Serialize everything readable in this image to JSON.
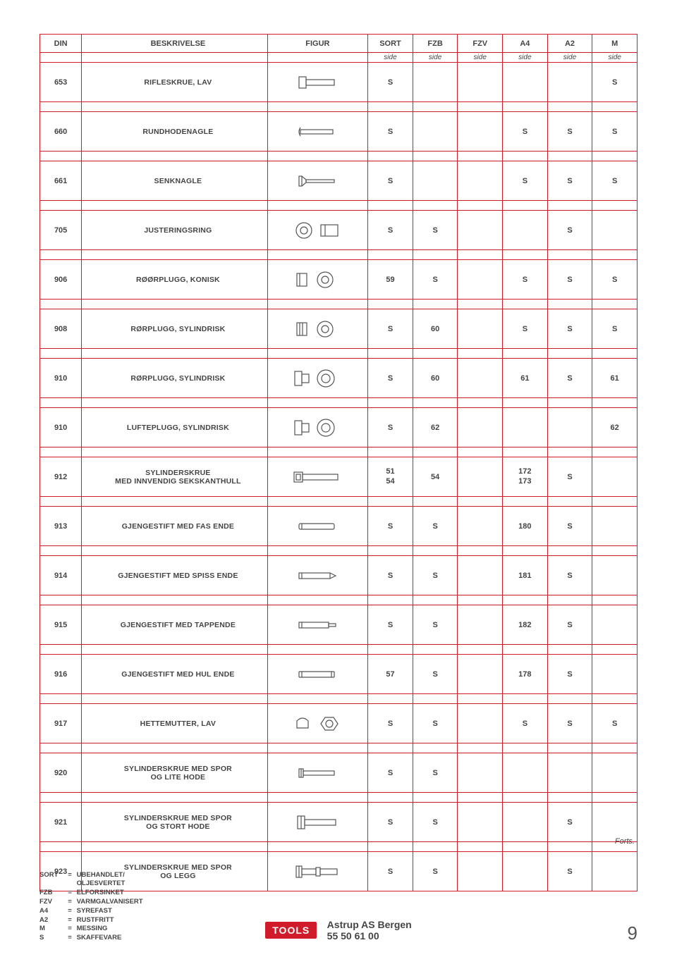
{
  "meta": {
    "theme": "#d01c2a",
    "text": "#444",
    "bg": "#ffffff"
  },
  "headers": {
    "din": "DIN",
    "desc": "BESKRIVELSE",
    "fig": "FIGUR",
    "sort": "SORT",
    "fzb": "FZB",
    "fzv": "FZV",
    "a4": "A4",
    "a2": "A2",
    "m": "M",
    "side": "side"
  },
  "rows": [
    {
      "din": "653",
      "desc": "RIFLESKRUE, LAV",
      "fig": "knurled-low",
      "sort": "S",
      "fzb": "",
      "fzv": "",
      "a4": "",
      "a2": "",
      "m": "S"
    },
    {
      "din": "660",
      "desc": "RUNDHODENAGLE",
      "fig": "rivet-round",
      "sort": "S",
      "fzb": "",
      "fzv": "",
      "a4": "S",
      "a2": "S",
      "m": "S"
    },
    {
      "din": "661",
      "desc": "SENKNAGLE",
      "fig": "rivet-csk",
      "sort": "S",
      "fzb": "",
      "fzv": "",
      "a4": "S",
      "a2": "S",
      "m": "S"
    },
    {
      "din": "705",
      "desc": "JUSTERINGSRING",
      "fig": "adj-ring",
      "sort": "S",
      "fzb": "S",
      "fzv": "",
      "a4": "",
      "a2": "S",
      "m": ""
    },
    {
      "din": "906",
      "desc": "RØØRPLUGG, KONISK",
      "fig": "plug-conic",
      "sort": "59",
      "fzb": "S",
      "fzv": "",
      "a4": "S",
      "a2": "S",
      "m": "S"
    },
    {
      "din": "908",
      "desc": "RØRPLUGG, SYLINDRISK",
      "fig": "plug-cyl",
      "sort": "S",
      "fzb": "60",
      "fzv": "",
      "a4": "S",
      "a2": "S",
      "m": "S"
    },
    {
      "din": "910",
      "desc": "RØRPLUGG, SYLINDRISK",
      "fig": "plug-cyl2",
      "sort": "S",
      "fzb": "60",
      "fzv": "",
      "a4": "61",
      "a2": "S",
      "m": "61"
    },
    {
      "din": "910",
      "desc": "LUFTEPLUGG, SYLINDRISK",
      "fig": "plug-vent",
      "sort": "S",
      "fzb": "62",
      "fzv": "",
      "a4": "",
      "a2": "",
      "m": "62"
    },
    {
      "din": "912",
      "desc": "SYLINDERSKRUE\nMED INNVENDIG SEKSKANTHULL",
      "fig": "socket-cap",
      "sort": "51\n54",
      "fzb": "54",
      "fzv": "",
      "a4": "172\n173",
      "a2": "S",
      "m": ""
    },
    {
      "din": "913",
      "desc": "GJENGESTIFT MED FAS ENDE",
      "fig": "set-flat",
      "sort": "S",
      "fzb": "S",
      "fzv": "",
      "a4": "180",
      "a2": "S",
      "m": ""
    },
    {
      "din": "914",
      "desc": "GJENGESTIFT MED SPISS ENDE",
      "fig": "set-cone",
      "sort": "S",
      "fzb": "S",
      "fzv": "",
      "a4": "181",
      "a2": "S",
      "m": ""
    },
    {
      "din": "915",
      "desc": "GJENGESTIFT MED TAPPENDE",
      "fig": "set-dog",
      "sort": "S",
      "fzb": "S",
      "fzv": "",
      "a4": "182",
      "a2": "S",
      "m": ""
    },
    {
      "din": "916",
      "desc": "GJENGESTIFT MED HUL ENDE",
      "fig": "set-cup",
      "sort": "57",
      "fzb": "S",
      "fzv": "",
      "a4": "178",
      "a2": "S",
      "m": ""
    },
    {
      "din": "917",
      "desc": "HETTEMUTTER, LAV",
      "fig": "cap-nut",
      "sort": "S",
      "fzb": "S",
      "fzv": "",
      "a4": "S",
      "a2": "S",
      "m": "S"
    },
    {
      "din": "920",
      "desc": "SYLINDERSKRUE MED SPOR\nOG LITE HODE",
      "fig": "cheese-small",
      "sort": "S",
      "fzb": "S",
      "fzv": "",
      "a4": "",
      "a2": "",
      "m": ""
    },
    {
      "din": "921",
      "desc": "SYLINDERSKRUE MED SPOR\nOG STORT HODE",
      "fig": "cheese-large",
      "sort": "S",
      "fzb": "S",
      "fzv": "",
      "a4": "",
      "a2": "S",
      "m": ""
    },
    {
      "din": "923",
      "desc": "SYLINDERSKRUE MED SPOR\nOG LEGG",
      "fig": "cheese-shoulder",
      "sort": "S",
      "fzb": "S",
      "fzv": "",
      "a4": "",
      "a2": "S",
      "m": ""
    }
  ],
  "legend": [
    {
      "k": "SORT",
      "v": "UBEHANDLET/"
    },
    {
      "k": "",
      "v": "OLJESVERTET"
    },
    {
      "k": "FZB",
      "v": "ELFORSINKET"
    },
    {
      "k": "FZV",
      "v": "VARMGALVANISERT"
    },
    {
      "k": "A4",
      "v": "SYREFAST"
    },
    {
      "k": "A2",
      "v": "RUSTFRITT"
    },
    {
      "k": "M",
      "v": "MESSING"
    },
    {
      "k": "S",
      "v": "SKAFFEVARE"
    }
  ],
  "forts": "Forts.",
  "footer": {
    "brand": "TOOLS",
    "line1": "Astrup AS Bergen",
    "line2": "55 50 61 00"
  },
  "page": "9"
}
